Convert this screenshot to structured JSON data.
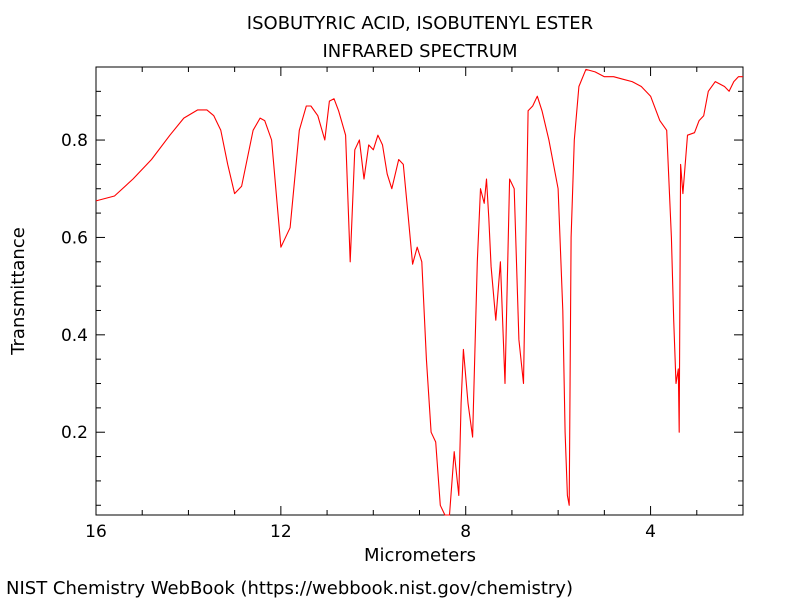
{
  "chart_data": {
    "type": "line",
    "title": "ISOBUTYRIC ACID, ISOBUTENYL ESTER",
    "subtitle": "INFRARED SPECTRUM",
    "xlabel": "Micrometers",
    "ylabel": "Transmittance",
    "xlim": [
      16,
      2
    ],
    "ylim": [
      0.03,
      0.95
    ],
    "x_ticks": [
      16,
      12,
      8,
      4
    ],
    "x_tick_labels": [
      "16",
      "12",
      "8",
      "4"
    ],
    "y_ticks": [
      0.2,
      0.4,
      0.6,
      0.8
    ],
    "y_tick_labels": [
      "0.2",
      "0.4",
      "0.6",
      "0.8"
    ],
    "grid": false,
    "series": [
      {
        "color": "#ff0000",
        "x": [
          16.0,
          15.6,
          15.2,
          14.8,
          14.4,
          14.1,
          13.8,
          13.6,
          13.45,
          13.3,
          13.15,
          13.0,
          12.85,
          12.6,
          12.45,
          12.35,
          12.2,
          12.0,
          11.8,
          11.6,
          11.45,
          11.35,
          11.2,
          11.05,
          10.95,
          10.85,
          10.75,
          10.6,
          10.5,
          10.4,
          10.3,
          10.2,
          10.1,
          10.0,
          9.9,
          9.8,
          9.7,
          9.6,
          9.45,
          9.35,
          9.25,
          9.15,
          9.05,
          8.95,
          8.85,
          8.75,
          8.65,
          8.55,
          8.45,
          8.35,
          8.25,
          8.15,
          8.1,
          8.05,
          7.95,
          7.85,
          7.75,
          7.68,
          7.6,
          7.55,
          7.5,
          7.45,
          7.35,
          7.25,
          7.15,
          7.05,
          6.95,
          6.85,
          6.75,
          6.65,
          6.55,
          6.45,
          6.35,
          6.2,
          6.0,
          5.9,
          5.85,
          5.8,
          5.76,
          5.72,
          5.65,
          5.55,
          5.4,
          5.2,
          5.0,
          4.8,
          4.6,
          4.4,
          4.2,
          4.0,
          3.8,
          3.65,
          3.55,
          3.5,
          3.45,
          3.4,
          3.38,
          3.35,
          3.3,
          3.2,
          3.05,
          2.95,
          2.85,
          2.75,
          2.6,
          2.4,
          2.3,
          2.2,
          2.1,
          2.0
        ],
        "y": [
          0.675,
          0.685,
          0.72,
          0.76,
          0.81,
          0.845,
          0.862,
          0.862,
          0.85,
          0.82,
          0.75,
          0.69,
          0.705,
          0.82,
          0.845,
          0.84,
          0.8,
          0.58,
          0.62,
          0.82,
          0.87,
          0.87,
          0.85,
          0.8,
          0.88,
          0.885,
          0.86,
          0.81,
          0.55,
          0.78,
          0.8,
          0.72,
          0.79,
          0.78,
          0.81,
          0.79,
          0.73,
          0.7,
          0.76,
          0.75,
          0.65,
          0.545,
          0.58,
          0.55,
          0.35,
          0.2,
          0.18,
          0.05,
          0.03,
          0.03,
          0.16,
          0.07,
          0.26,
          0.37,
          0.26,
          0.19,
          0.55,
          0.7,
          0.67,
          0.72,
          0.64,
          0.54,
          0.43,
          0.55,
          0.3,
          0.72,
          0.7,
          0.39,
          0.3,
          0.86,
          0.87,
          0.89,
          0.86,
          0.8,
          0.7,
          0.45,
          0.2,
          0.07,
          0.05,
          0.6,
          0.8,
          0.91,
          0.945,
          0.94,
          0.93,
          0.93,
          0.925,
          0.92,
          0.91,
          0.89,
          0.84,
          0.82,
          0.6,
          0.43,
          0.3,
          0.33,
          0.2,
          0.75,
          0.69,
          0.81,
          0.815,
          0.84,
          0.85,
          0.9,
          0.92,
          0.91,
          0.9,
          0.92,
          0.93,
          0.93
        ]
      }
    ]
  },
  "footer": {
    "credit": "NIST Chemistry WebBook (https://webbook.nist.gov/chemistry)"
  }
}
